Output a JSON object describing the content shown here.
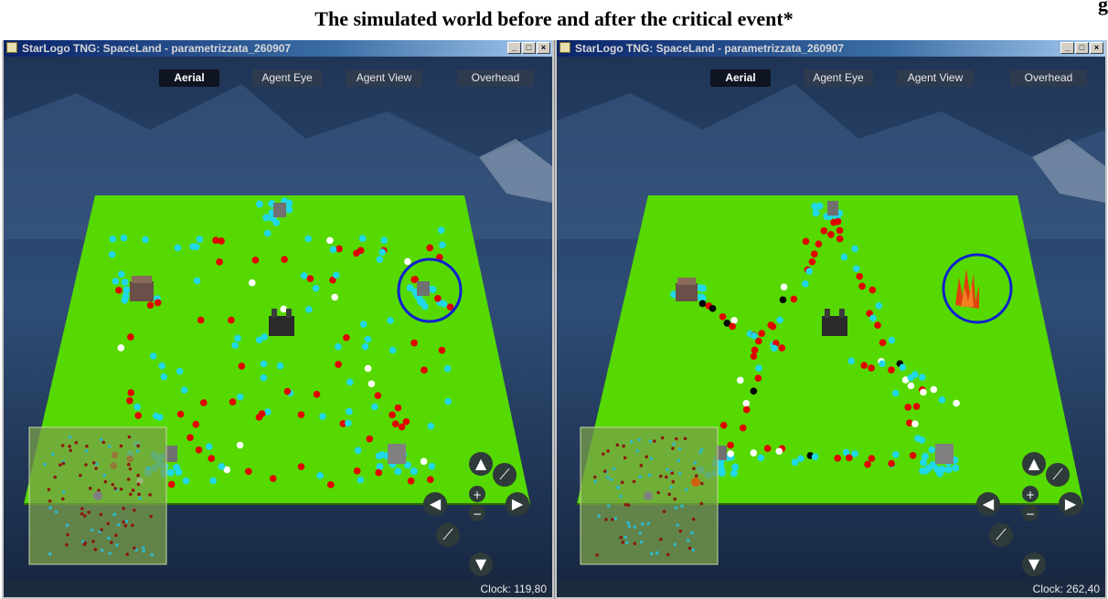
{
  "figure": {
    "tag": "g",
    "caption": "The simulated world before and after the critical event*"
  },
  "colors": {
    "ground": "#55d900",
    "red_agent": "#e00000",
    "cyan_agent": "#20d8e8",
    "highlight_circle": "#1020d0",
    "nav_button": "#2f3a3a"
  },
  "windows": [
    {
      "title": "StarLogo TNG: SpaceLand - parametrizzata_260907",
      "window_buttons": [
        "_",
        "□",
        "×"
      ],
      "camera_buttons": [
        "Aerial",
        "Agent Eye",
        "Agent View",
        "Overhead"
      ],
      "active_camera": "Aerial",
      "clock": "Clock: 119,80",
      "highlight": "agent-cluster",
      "icons": [
        "arrow-up-icon",
        "arrow-down-icon",
        "arrow-left-icon",
        "arrow-right-icon",
        "zoom-in-icon",
        "zoom-out-icon",
        "rotate-left-icon",
        "rotate-right-icon"
      ]
    },
    {
      "title": "StarLogo TNG: SpaceLand - parametrizzata_260907",
      "window_buttons": [
        "_",
        "□",
        "×"
      ],
      "camera_buttons": [
        "Aerial",
        "Agent Eye",
        "Agent View",
        "Overhead"
      ],
      "active_camera": "Aerial",
      "clock": "Clock: 262,40",
      "highlight": "fire",
      "icons": [
        "arrow-up-icon",
        "arrow-down-icon",
        "arrow-left-icon",
        "arrow-right-icon",
        "zoom-in-icon",
        "zoom-out-icon",
        "rotate-left-icon",
        "rotate-right-icon"
      ]
    }
  ]
}
